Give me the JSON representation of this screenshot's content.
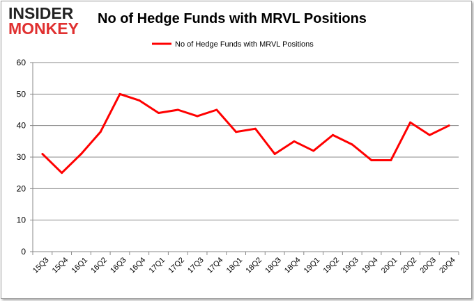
{
  "logo": {
    "line1": "INSIDER",
    "line2": "MONKEY"
  },
  "chart_data": {
    "type": "line",
    "title": "No of Hedge Funds with MRVL Positions",
    "xlabel": "",
    "ylabel": "",
    "ylim": [
      0,
      60
    ],
    "yticks": [
      0,
      10,
      20,
      30,
      40,
      50,
      60
    ],
    "grid": true,
    "legend": "top-center",
    "categories": [
      "15Q3",
      "15Q4",
      "16Q1",
      "16Q2",
      "16Q3",
      "16Q4",
      "17Q1",
      "17Q2",
      "17Q3",
      "17Q4",
      "18Q1",
      "18Q2",
      "18Q3",
      "18Q4",
      "19Q1",
      "19Q2",
      "19Q3",
      "19Q4",
      "20Q1",
      "20Q2",
      "20Q3",
      "20Q4"
    ],
    "series": [
      {
        "name": "No of Hedge Funds with MRVL Positions",
        "color": "#ff0000",
        "values": [
          31,
          25,
          31,
          38,
          50,
          48,
          44,
          45,
          43,
          45,
          38,
          39,
          31,
          35,
          32,
          37,
          34,
          29,
          29,
          41,
          37,
          40
        ]
      }
    ]
  }
}
